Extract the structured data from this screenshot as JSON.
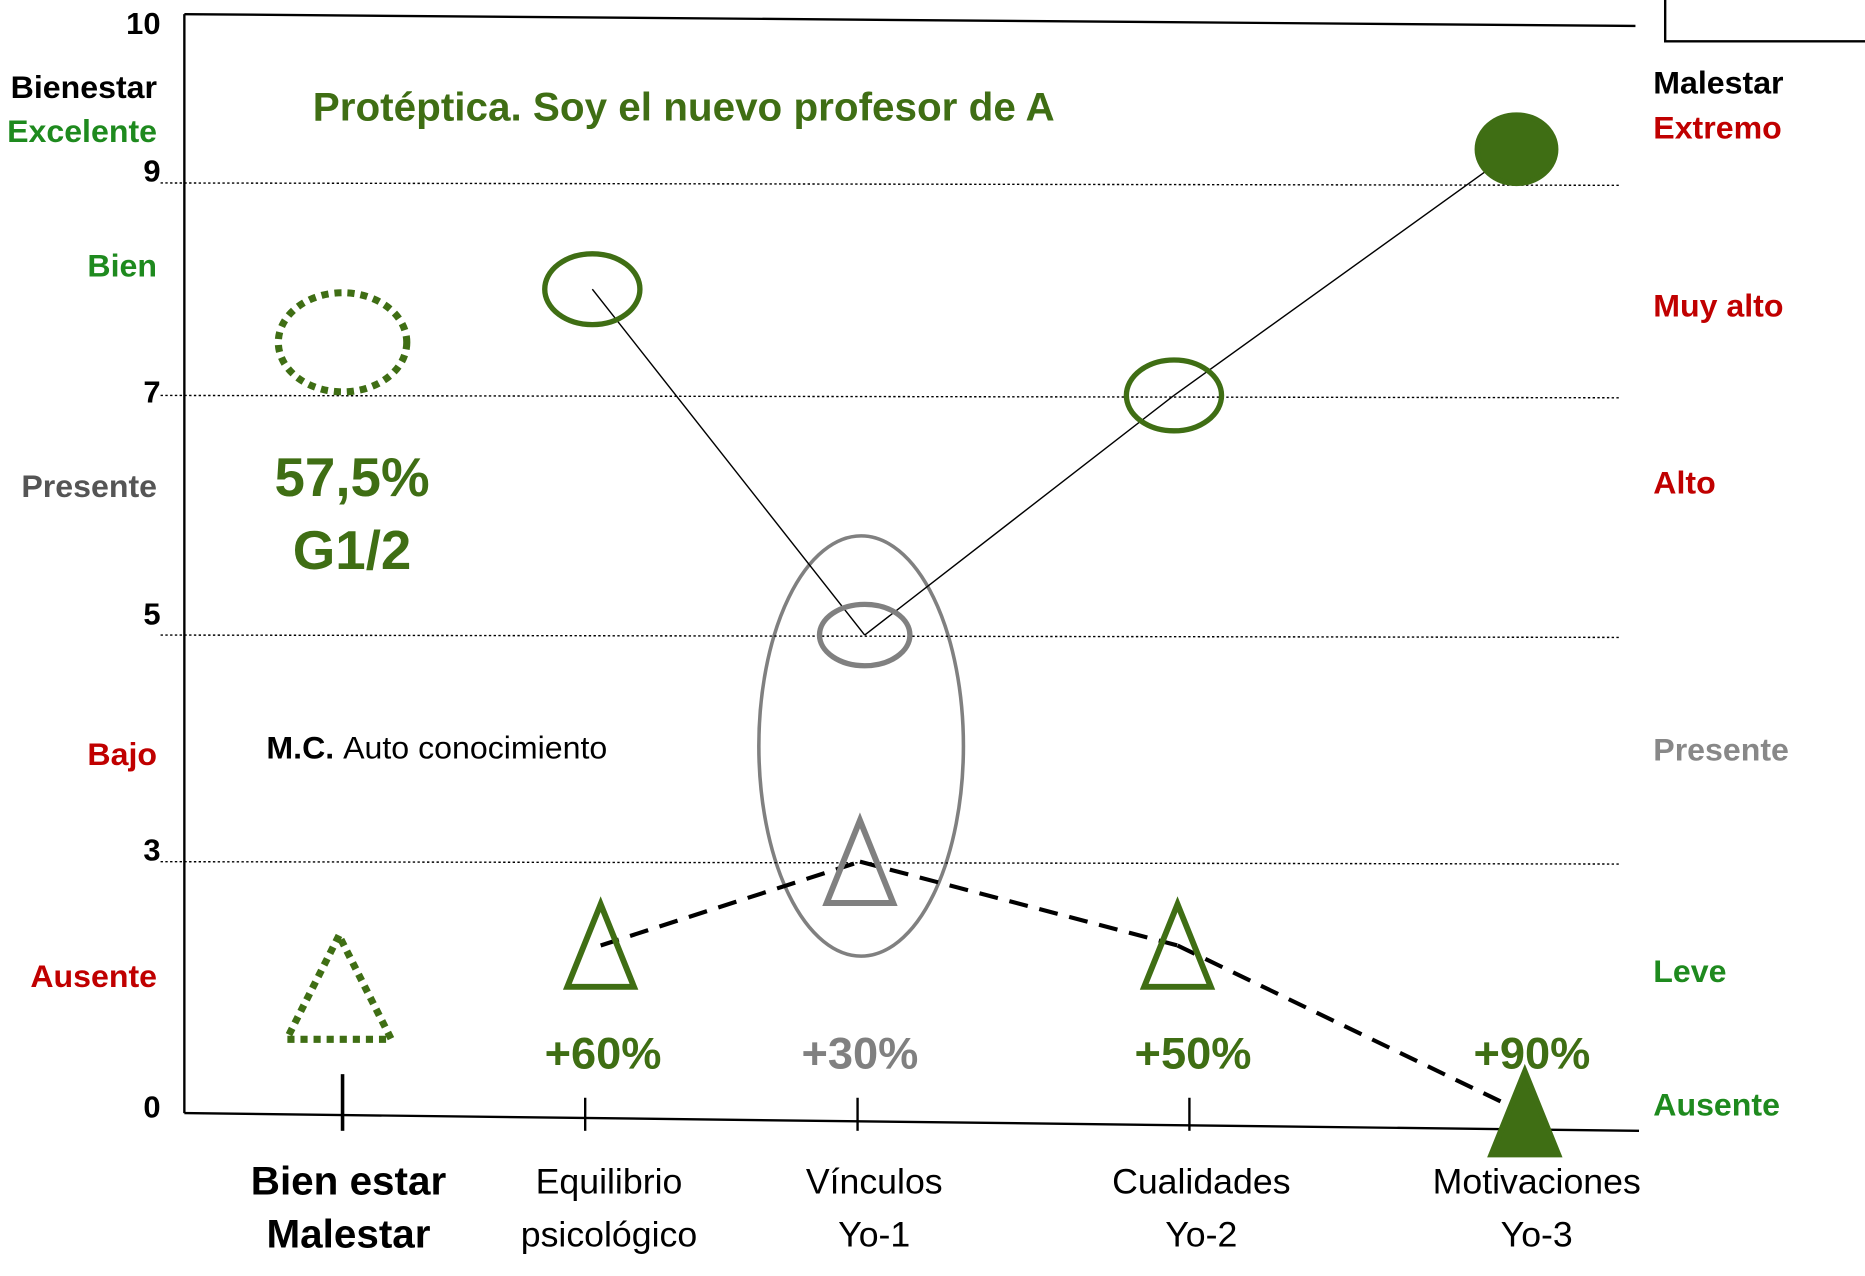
{
  "chart_data": {
    "type": "profile",
    "title": "Protéptica. Soy el nuevo profesor de A",
    "categories": [
      [
        "Bien estar",
        "Malestar"
      ],
      [
        "Equilibrio",
        "psicológico"
      ],
      [
        "Vínculos",
        "Yo-1"
      ],
      [
        "Cualidades",
        "Yo-2"
      ],
      [
        "Motivaciones",
        "Yo-3"
      ]
    ],
    "ylim": [
      0,
      10
    ],
    "yticks": [
      0,
      3,
      5,
      7,
      9,
      10
    ],
    "grid": true,
    "series": [
      {
        "marker": "circle",
        "colors": [
          "#3f6e14",
          "#3f6e14",
          "#808080",
          "#3f6e14",
          "#3f6e14"
        ],
        "values": [
          7.5,
          8,
          5,
          7,
          9.2
        ]
      },
      {
        "marker": "triangle",
        "colors": [
          "#3f6e14",
          "#3f6e14",
          "#808080",
          "#3f6e14",
          "#3f6e14"
        ],
        "values": [
          1.5,
          2,
          3,
          2,
          0
        ]
      }
    ],
    "percent": {
      "values": [
        null,
        60,
        30,
        50,
        90
      ],
      "value_labels": [
        null,
        "+60%",
        "+30%",
        "+50%",
        "+90%"
      ],
      "colors": [
        null,
        "#3f6e14",
        "#808080",
        "#3f6e14",
        "#3f6e14"
      ]
    },
    "annotations": [
      "57,5%",
      "G1/2"
    ],
    "note": {
      "bold": "M.C.",
      "text": "Auto conocimiento"
    },
    "left_labels": [
      {
        "text": "Bienestar",
        "color": "#000000"
      },
      {
        "text": "Excelente",
        "color": "#1e8a1e"
      },
      {
        "text": "Bien",
        "color": "#1e8a1e"
      },
      {
        "text": "Presente",
        "color": "#555555"
      },
      {
        "text": "Bajo",
        "color": "#c00000"
      },
      {
        "text": "Ausente",
        "color": "#c00000"
      }
    ],
    "right_labels": [
      {
        "text": "Malestar",
        "color": "#000000"
      },
      {
        "text": "Extremo",
        "color": "#c00000"
      },
      {
        "text": "Muy alto",
        "color": "#c00000"
      },
      {
        "text": "Alto",
        "color": "#c00000"
      },
      {
        "text": "Presente",
        "color": "#888888"
      },
      {
        "text": "Leve",
        "color": "#1e8a1e"
      },
      {
        "text": "Ausente",
        "color": "#1e8a1e"
      }
    ]
  }
}
